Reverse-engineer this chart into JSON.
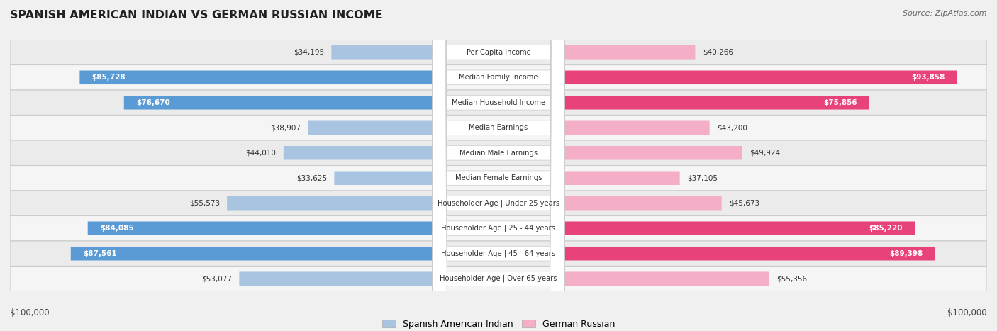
{
  "title": "SPANISH AMERICAN INDIAN VS GERMAN RUSSIAN INCOME",
  "source": "Source: ZipAtlas.com",
  "categories": [
    "Per Capita Income",
    "Median Family Income",
    "Median Household Income",
    "Median Earnings",
    "Median Male Earnings",
    "Median Female Earnings",
    "Householder Age | Under 25 years",
    "Householder Age | 25 - 44 years",
    "Householder Age | 45 - 64 years",
    "Householder Age | Over 65 years"
  ],
  "spanish_values": [
    34195,
    85728,
    76670,
    38907,
    44010,
    33625,
    55573,
    84085,
    87561,
    53077
  ],
  "german_values": [
    40266,
    93858,
    75856,
    43200,
    49924,
    37105,
    45673,
    85220,
    89398,
    55356
  ],
  "spanish_labels": [
    "$34,195",
    "$85,728",
    "$76,670",
    "$38,907",
    "$44,010",
    "$33,625",
    "$55,573",
    "$84,085",
    "$87,561",
    "$53,077"
  ],
  "german_labels": [
    "$40,266",
    "$93,858",
    "$75,856",
    "$43,200",
    "$49,924",
    "$37,105",
    "$45,673",
    "$85,220",
    "$89,398",
    "$55,356"
  ],
  "spanish_color_light": "#a8c4e0",
  "spanish_color_dark": "#5b9bd5",
  "german_color_light": "#f4aec8",
  "german_color_dark": "#e8427a",
  "max_value": 100000,
  "bg_color": "#f0f0f0",
  "row_bg_even": "#ebebeb",
  "row_bg_odd": "#f5f5f5",
  "legend_spanish": "Spanish American Indian",
  "legend_german": "German Russian",
  "xlabel_left": "$100,000",
  "xlabel_right": "$100,000"
}
